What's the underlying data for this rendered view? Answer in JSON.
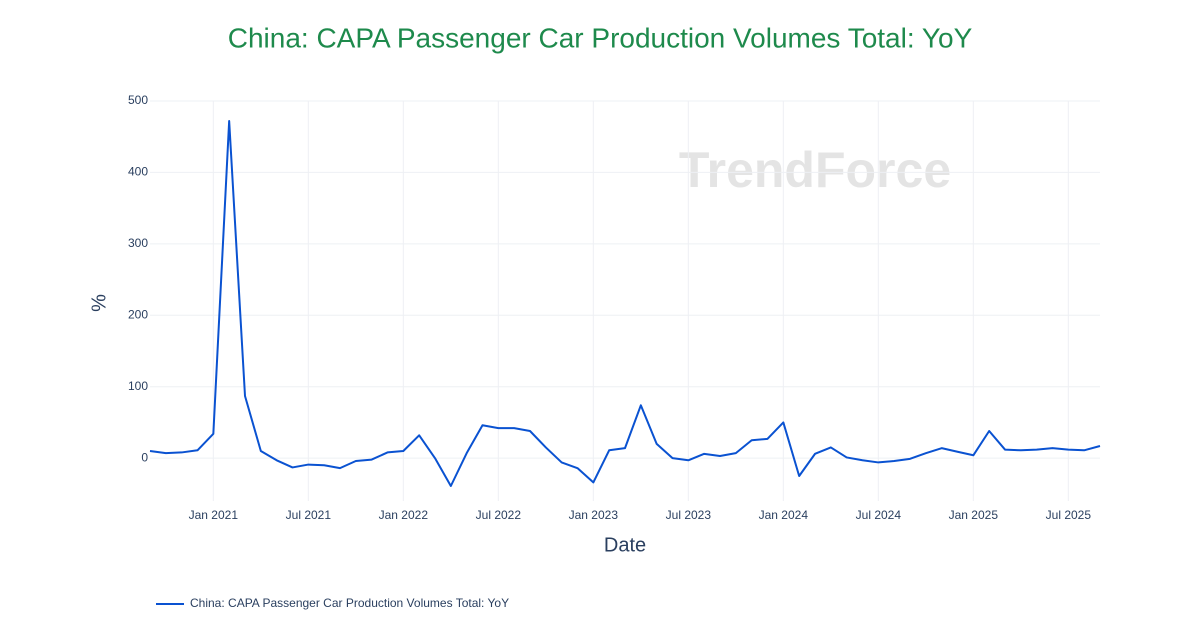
{
  "chart_data": {
    "type": "line",
    "title": "China: CAPA Passenger Car Production Volumes Total: YoY",
    "watermark": "TrendForce",
    "x_label": "Date",
    "y_label": "%",
    "x": [
      "2020-09",
      "2020-10",
      "2020-11",
      "2020-12",
      "2021-01",
      "2021-02",
      "2021-03",
      "2021-04",
      "2021-05",
      "2021-06",
      "2021-07",
      "2021-08",
      "2021-09",
      "2021-10",
      "2021-11",
      "2021-12",
      "2022-01",
      "2022-02",
      "2022-03",
      "2022-04",
      "2022-05",
      "2022-06",
      "2022-07",
      "2022-08",
      "2022-09",
      "2022-10",
      "2022-11",
      "2022-12",
      "2023-01",
      "2023-02",
      "2023-03",
      "2023-04",
      "2023-05",
      "2023-06",
      "2023-07",
      "2023-08",
      "2023-09",
      "2023-10",
      "2023-11",
      "2023-12",
      "2024-01",
      "2024-02",
      "2024-03",
      "2024-04",
      "2024-05",
      "2024-06",
      "2024-07",
      "2024-08",
      "2024-09",
      "2024-10",
      "2024-11",
      "2024-12",
      "2025-01",
      "2025-02",
      "2025-03",
      "2025-04",
      "2025-05",
      "2025-06",
      "2025-07",
      "2025-08",
      "2025-09"
    ],
    "series": [
      {
        "name": "China: CAPA Passenger Car Production Volumes Total: YoY",
        "color": "#0a52d1",
        "values": [
          10,
          7,
          8,
          11,
          34,
          472,
          87,
          10,
          -3,
          -13,
          -9,
          -10,
          -14,
          -4,
          -2,
          8,
          10,
          32,
          0,
          -39,
          7,
          46,
          42,
          42,
          38,
          15,
          -6,
          -14,
          -34,
          11,
          14,
          74,
          20,
          0,
          -3,
          6,
          3,
          7,
          25,
          27,
          50,
          -25,
          6,
          15,
          1,
          -3,
          -6,
          -4,
          -1,
          7,
          14,
          9,
          4,
          38,
          12,
          11,
          12,
          14,
          12,
          11,
          17
        ]
      }
    ],
    "xlim": [
      "2020-09",
      "2025-09"
    ],
    "xticks": [
      {
        "value": "2021-01",
        "label": "Jan 2021"
      },
      {
        "value": "2021-07",
        "label": "Jul 2021"
      },
      {
        "value": "2022-01",
        "label": "Jan 2022"
      },
      {
        "value": "2022-07",
        "label": "Jul 2022"
      },
      {
        "value": "2023-01",
        "label": "Jan 2023"
      },
      {
        "value": "2023-07",
        "label": "Jul 2023"
      },
      {
        "value": "2024-01",
        "label": "Jan 2024"
      },
      {
        "value": "2024-07",
        "label": "Jul 2024"
      },
      {
        "value": "2025-01",
        "label": "Jan 2025"
      },
      {
        "value": "2025-07",
        "label": "Jul 2025"
      }
    ],
    "ylim": [
      -60,
      500
    ],
    "yticks": [
      0,
      100,
      200,
      300,
      400,
      500
    ],
    "grid": true
  }
}
